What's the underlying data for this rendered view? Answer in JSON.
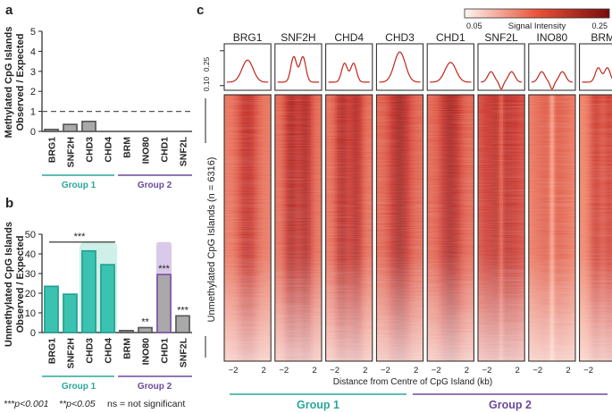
{
  "panels": {
    "a": "a",
    "b": "b",
    "c": "c"
  },
  "groups": {
    "group1": "Group 1",
    "group2": "Group 2"
  },
  "legend_note": {
    "p001": "***p<0.001",
    "p005": "**p<0.05",
    "ns": "ns = not significant"
  },
  "colors": {
    "teal": "#3cc2b0",
    "teal_dark": "#1f9e8e",
    "gray": "#a9a9a9",
    "purple": "#7a4fa8",
    "signal_low": "#fdf1ec",
    "signal_high": "#8e0f0f"
  },
  "chart_data": [
    {
      "id": "a",
      "type": "bar",
      "ylabel_line1": "Methylated CpG Islands",
      "ylabel_line2": "Observed / Expected",
      "ylim": [
        0,
        5
      ],
      "yticks": [
        "0",
        "1",
        "2",
        "3",
        "4",
        "5"
      ],
      "reference_line": 1,
      "categories": [
        "BRG1",
        "SNF2H",
        "CHD3",
        "CHD4",
        "BRM",
        "INO80",
        "CHD1",
        "SNF2L"
      ],
      "values": [
        0.1,
        0.35,
        0.5,
        0.0,
        0.0,
        0.0,
        0.0,
        0.0
      ]
    },
    {
      "id": "b",
      "type": "bar",
      "ylabel_line1": "Unmethylated CpG Islands",
      "ylabel_line2": "Observed / Expected",
      "ylim": [
        0,
        50
      ],
      "yticks": [
        "0",
        "10",
        "20",
        "30",
        "40",
        "50"
      ],
      "categories": [
        "BRG1",
        "SNF2H",
        "CHD3",
        "CHD4",
        "BRM",
        "INO80",
        "CHD1",
        "SNF2L"
      ],
      "values": [
        23.5,
        19.5,
        41.5,
        34.5,
        1.0,
        2.5,
        29.5,
        8.5
      ],
      "group1_bracket": "***",
      "significance": [
        "",
        "",
        "",
        "",
        "",
        "**",
        "***",
        "***"
      ]
    },
    {
      "id": "c",
      "type": "heatmap",
      "colorbar_title": "Signal Intensity",
      "colorbar_min": "0.05",
      "colorbar_max": "0.25",
      "profile_ytick_top": "0.25",
      "profile_ytick_bottom": "0.10",
      "row_label": "Unmethylated CpG Islands (n = 6316)",
      "xlabel": "Distance from Centre of CpG Island (kb)",
      "xtick_left": "−2",
      "xtick_right": "2",
      "remodelers": [
        "BRG1",
        "SNF2H",
        "CHD4",
        "CHD3",
        "CHD1",
        "SNF2L",
        "INO80",
        "BRM"
      ],
      "profile_peak": [
        0.21,
        0.23,
        0.2,
        0.245,
        0.2,
        0.16,
        0.155,
        0.18
      ],
      "heat_intensity": [
        0.72,
        0.8,
        0.78,
        0.85,
        0.84,
        0.76,
        0.5,
        0.62
      ]
    }
  ]
}
